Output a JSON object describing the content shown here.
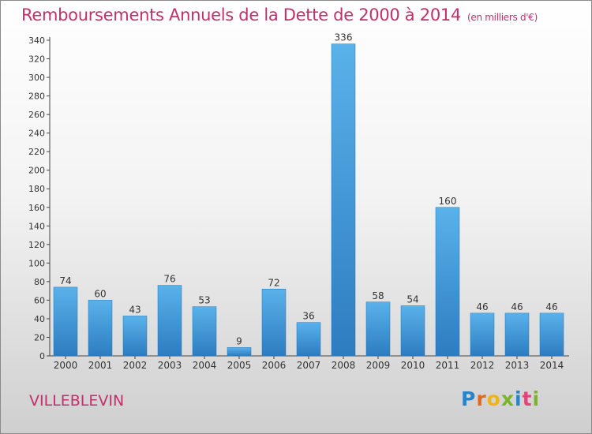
{
  "header": {
    "title": "Remboursements Annuels de la Dette de 2000 à 2014",
    "unit": "(en milliers d'€)"
  },
  "footer": {
    "commune": "VILLEBLEVIN",
    "logo": "Proxiti"
  },
  "colors": {
    "bar_light": "#5ab2ea",
    "bar_dark": "#2d7cc0",
    "title": "#c0306a"
  },
  "chart_data": {
    "type": "bar",
    "title": "Remboursements Annuels de la Dette de 2000 à 2014",
    "xlabel": "",
    "ylabel": "",
    "categories": [
      "2000",
      "2001",
      "2002",
      "2003",
      "2004",
      "2005",
      "2006",
      "2007",
      "2008",
      "2009",
      "2010",
      "2011",
      "2012",
      "2013",
      "2014"
    ],
    "values": [
      74,
      60,
      43,
      76,
      53,
      9,
      72,
      36,
      336,
      58,
      54,
      160,
      46,
      46,
      46
    ],
    "ylim": [
      0,
      340
    ],
    "yticks": [
      0,
      20,
      40,
      60,
      80,
      100,
      120,
      140,
      160,
      180,
      200,
      220,
      240,
      260,
      280,
      300,
      320,
      340
    ],
    "grid": false,
    "legend": "none"
  }
}
